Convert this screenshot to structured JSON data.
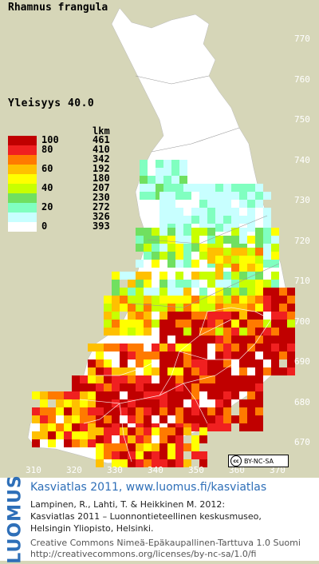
{
  "map": {
    "species": "Rhamnus frangula",
    "frequency_label": "Yleisyys  40.0",
    "legend_count_header": "lkm",
    "legend": [
      {
        "value": "100",
        "count": "461",
        "color": "#c00000"
      },
      {
        "value": "80",
        "count": "410",
        "color": "#f02020"
      },
      {
        "value": "",
        "count": "342",
        "color": "#ff7a00"
      },
      {
        "value": "60",
        "count": "192",
        "color": "#ffc000"
      },
      {
        "value": "",
        "count": "180",
        "color": "#ffff00"
      },
      {
        "value": "40",
        "count": "207",
        "color": "#c8ff00"
      },
      {
        "value": "",
        "count": "230",
        "color": "#70e060"
      },
      {
        "value": "20",
        "count": "272",
        "color": "#80ffc0"
      },
      {
        "value": "",
        "count": "326",
        "color": "#c8ffff"
      },
      {
        "value": "0",
        "count": "393",
        "color": "#ffffff"
      }
    ],
    "y_ticks": [
      "770",
      "760",
      "750",
      "740",
      "730",
      "720",
      "710",
      "700",
      "690",
      "680",
      "670"
    ],
    "x_ticks": [
      "310",
      "320",
      "330",
      "340",
      "350",
      "360",
      "370"
    ],
    "cc_badge": "BY-NC-SA",
    "cc_logo": "cc"
  },
  "footer": {
    "logo_text": "LUOMUS",
    "title": "Kasviatlas 2011, www.luomus.fi/kasviatlas",
    "citation_line1": "Lampinen, R., Lahti, T. & Heikkinen M. 2012:",
    "citation_line2": "Kasviatlas 2011 – Luonnontieteellinen keskusmuseo,",
    "citation_line3": "Helsingin Yliopisto, Helsinki.",
    "license_line1": "Creative Commons Nimeä-Epäkaupallinen-Tarttuva 1.0 Suomi",
    "license_line2": "http://creativecommons.org/licenses/by-nc-sa/1.0/fi"
  }
}
